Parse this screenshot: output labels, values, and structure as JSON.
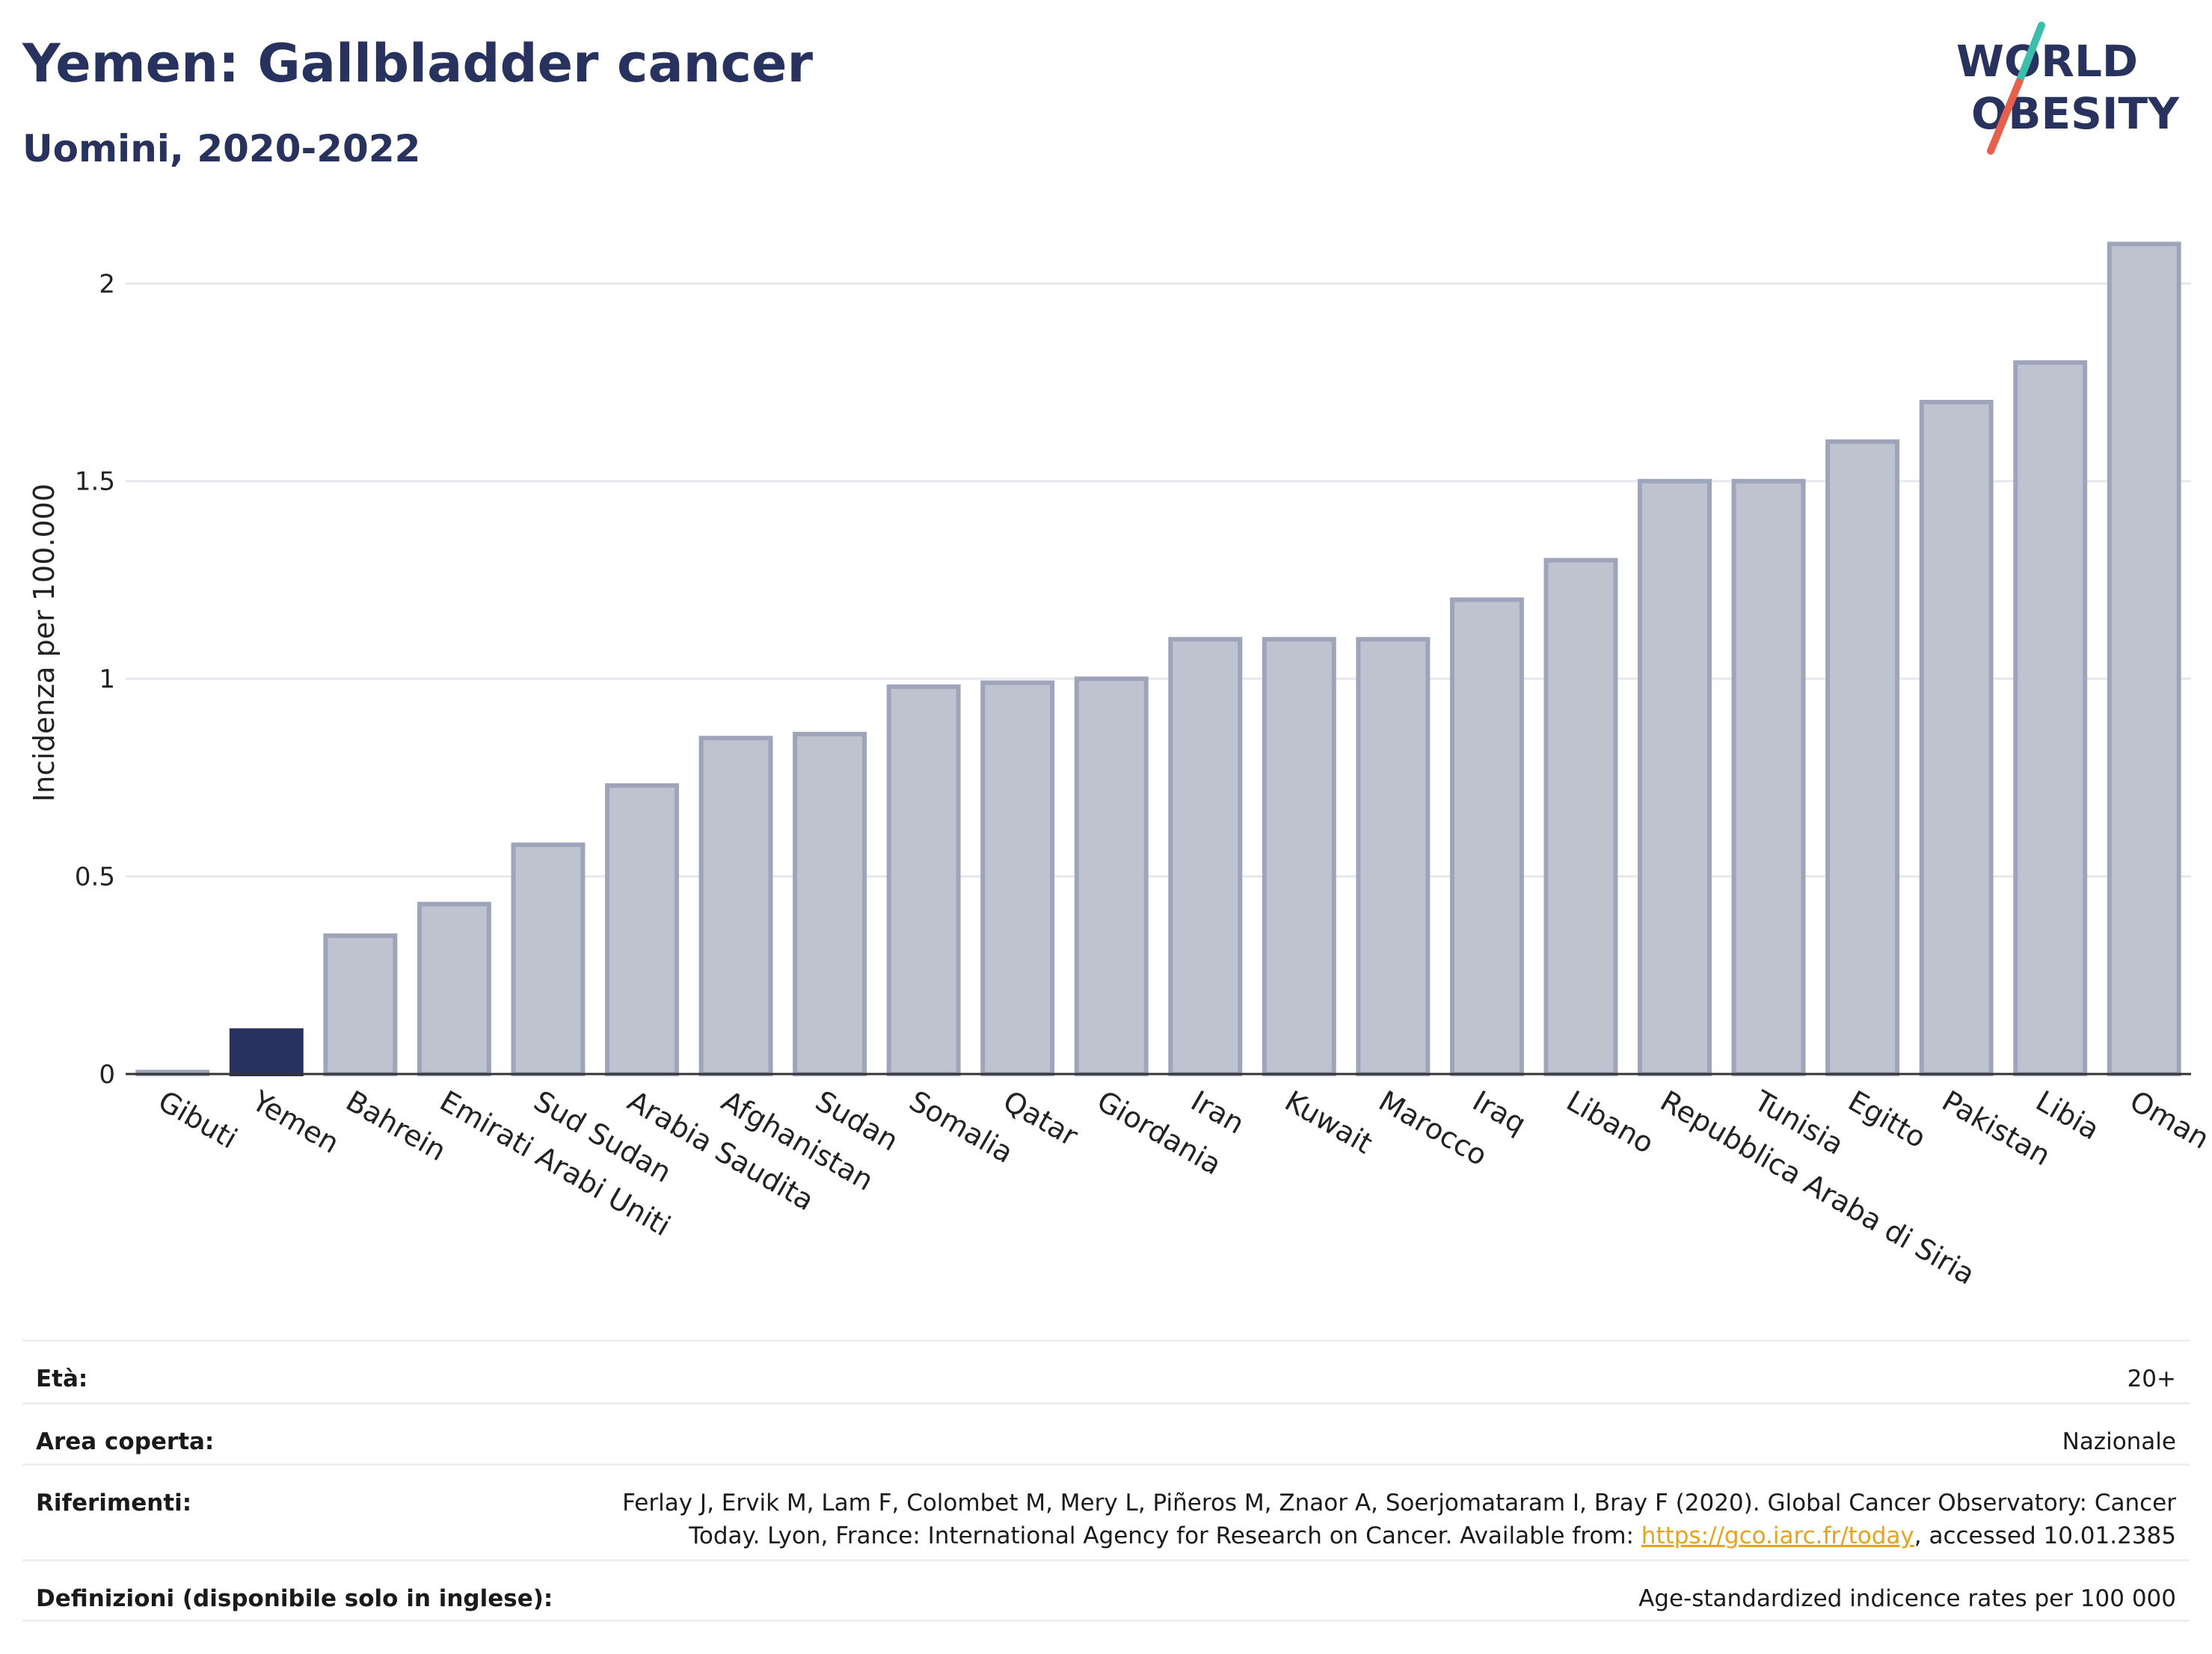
{
  "header": {
    "title": "Yemen: Gallbladder cancer",
    "subtitle": "Uomini, 2020-2022"
  },
  "logo": {
    "line1": "WORLD",
    "line2": "OBESITY",
    "colors": {
      "text": "#27325f",
      "slash_top": "#3bbfad",
      "slash_bottom": "#e8604c"
    }
  },
  "chart_data": {
    "type": "bar",
    "ylabel": "Incidenza per 100.000",
    "xlabel": "",
    "ylim": [
      0,
      2.15
    ],
    "yticks": [
      0,
      0.5,
      1,
      1.5,
      2
    ],
    "ytick_labels": [
      "0",
      "0.5",
      "1",
      "1.5",
      "2"
    ],
    "grid": true,
    "highlight": "Yemen",
    "colors": {
      "bar_fill": "#bfc3d0",
      "bar_stroke": "#9ea5ba",
      "highlight": "#27325f",
      "grid": "#e6e8ee",
      "axis": "#333333"
    },
    "categories": [
      "Gibuti",
      "Yemen",
      "Bahrein",
      "Emirati Arabi Uniti",
      "Sud Sudan",
      "Arabia Saudita",
      "Afghanistan",
      "Sudan",
      "Somalia",
      "Qatar",
      "Giordania",
      "Iran",
      "Kuwait",
      "Marocco",
      "Iraq",
      "Libano",
      "Repubblica Araba di Siria",
      "Tunisia",
      "Egitto",
      "Pakistan",
      "Libia",
      "Oman"
    ],
    "values": [
      0.005,
      0.11,
      0.35,
      0.43,
      0.58,
      0.73,
      0.85,
      0.86,
      0.98,
      0.99,
      1.0,
      1.1,
      1.1,
      1.1,
      1.2,
      1.3,
      1.5,
      1.5,
      1.6,
      1.7,
      1.8,
      2.1
    ]
  },
  "meta": {
    "rows": [
      {
        "label": "Età:",
        "value": "20+"
      },
      {
        "label": "Area coperta:",
        "value": "Nazionale"
      },
      {
        "label": "Riferimenti:",
        "value_line1": "Ferlay J, Ervik M, Lam F, Colombet M, Mery L, Piñeros M, Znaor A, Soerjomataram I, Bray F (2020). Global Cancer Observatory: Cancer",
        "value_line2_pre": "Today. Lyon, France: International Agency for Research on Cancer. Available from: ",
        "link_text": "https://gco.iarc.fr/today",
        "value_line2_post": ", accessed 10.01.2385"
      },
      {
        "label": "Definizioni (disponibile solo in inglese):",
        "value": "Age-standardized indicence rates per 100 000"
      }
    ]
  }
}
